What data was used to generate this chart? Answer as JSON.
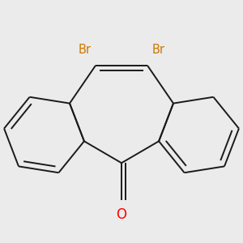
{
  "background_color": "#ebebeb",
  "bond_color": "#1a1a1a",
  "br_color": "#cc7700",
  "o_color": "#ff0000",
  "line_width": 1.4,
  "br_fontsize": 10.5,
  "o_fontsize": 12,
  "xlim": [
    -2.3,
    2.3
  ],
  "ylim": [
    -2.2,
    1.6
  ],
  "C5": [
    0.0,
    -1.1
  ],
  "C5a": [
    -0.72,
    -0.68
  ],
  "C4a": [
    -1.0,
    0.05
  ],
  "C10": [
    -0.5,
    0.78
  ],
  "C11": [
    0.5,
    0.78
  ],
  "C11a": [
    1.0,
    0.05
  ],
  "C6a": [
    0.72,
    -0.68
  ],
  "O": [
    0.0,
    -1.82
  ]
}
